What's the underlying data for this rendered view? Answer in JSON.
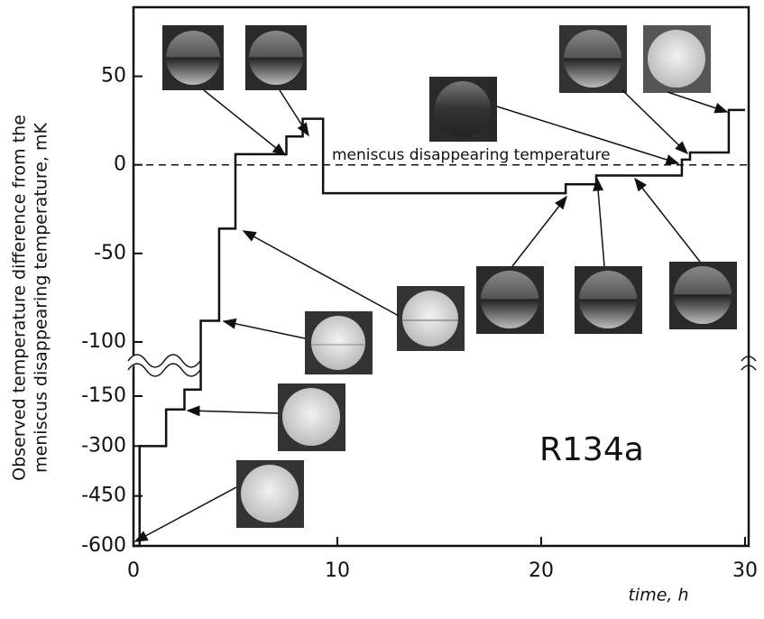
{
  "chart_data": {
    "type": "line",
    "y_label_lines": [
      "Observed temperature difference from the",
      "meniscus disappearing temperature, mK"
    ],
    "x_label": "time, h",
    "annotation": "meniscus disappearing temperature",
    "sample_label": "R134a",
    "series": [
      {
        "name": "R134a",
        "color": "#111111",
        "step": true,
        "x": [
          0,
          0.3,
          1.6,
          2.5,
          3.3,
          4.2,
          5.0,
          7.5,
          8.3,
          9.3,
          21.2,
          22.7,
          26.9,
          27.3,
          29.2,
          30
        ],
        "values": [
          -600,
          -300,
          -190,
          -144,
          -88,
          -36,
          6,
          16,
          26,
          -16,
          -11,
          -6,
          3,
          7,
          31,
          31
        ]
      }
    ],
    "reference_line": 0,
    "xlim": [
      0,
      30
    ],
    "xticks": [
      0,
      10,
      20,
      30
    ],
    "ylim": [
      -600,
      89
    ],
    "yticks": [
      50,
      0,
      -50,
      -100,
      -150,
      -300,
      -450,
      -600
    ],
    "y_break": [
      -150,
      -100
    ]
  }
}
